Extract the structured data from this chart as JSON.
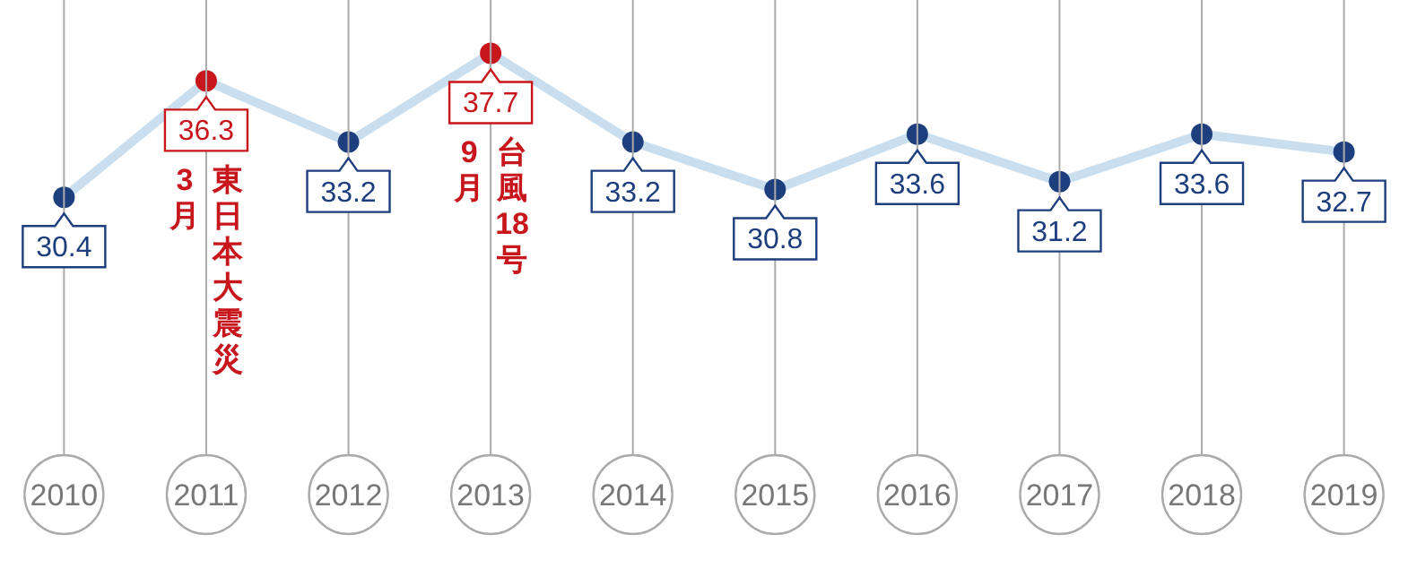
{
  "chart_data": {
    "type": "line",
    "categories": [
      "2010",
      "2011",
      "2012",
      "2013",
      "2014",
      "2015",
      "2016",
      "2017",
      "2018",
      "2019"
    ],
    "series": [
      {
        "color": "#c9dff0",
        "colors": [
          "#1e3f7e",
          "#c8161d",
          "#1e3f7e",
          "#c8161d",
          "#1e3f7e",
          "#1e3f7e",
          "#1e3f7e",
          "#1e3f7e",
          "#1e3f7e",
          "#1e3f7e"
        ],
        "values": [
          30.4,
          36.3,
          33.2,
          37.7,
          33.2,
          30.8,
          33.6,
          31.2,
          33.6,
          32.7
        ]
      }
    ],
    "data_labels": true,
    "grid": "x",
    "marker": "circle",
    "annotations": [
      {
        "text": "3月",
        "x": "2011",
        "y": 36.3
      },
      {
        "text": "東日本大震災",
        "x": "2011",
        "y": 36.3
      },
      {
        "text": "9月",
        "x": "2013",
        "y": 37.7
      },
      {
        "text": "台風18号",
        "x": "2013",
        "y": 37.7
      }
    ]
  }
}
